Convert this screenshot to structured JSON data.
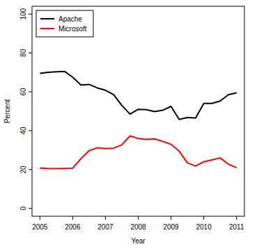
{
  "chart_data": {
    "type": "line",
    "x_label": "Year",
    "y_label": "Percent",
    "x": [
      2005,
      2005.25,
      2005.5,
      2005.75,
      2006,
      2006.25,
      2006.5,
      2006.75,
      2007,
      2007.25,
      2007.5,
      2007.75,
      2008,
      2008.25,
      2008.5,
      2008.75,
      2009,
      2009.25,
      2009.5,
      2009.75,
      2010,
      2010.25,
      2010.5,
      2010.75,
      2011
    ],
    "series": [
      {
        "name": "Apache",
        "color": "#000000",
        "values": [
          69.5,
          70,
          70.3,
          70.5,
          67.5,
          63.5,
          63.8,
          62,
          60.8,
          58.5,
          53,
          48.5,
          51,
          50.8,
          49.8,
          50.5,
          52.5,
          45.8,
          46.8,
          46.5,
          54,
          54,
          55.3,
          58.5,
          59.5
        ]
      },
      {
        "name": "Microsoft",
        "color": "#ff0000",
        "values": [
          20.8,
          20.5,
          20.5,
          20.6,
          20.7,
          25.5,
          29.7,
          31.2,
          30.8,
          31,
          32.7,
          37.3,
          36,
          35.5,
          35.8,
          34.5,
          33,
          29.5,
          23.5,
          21.8,
          24,
          25,
          26,
          22.8,
          21
        ]
      }
    ],
    "xlim": [
      2004.76,
      2011.24
    ],
    "xticks": [
      2005,
      2006,
      2007,
      2008,
      2009,
      2010,
      2011
    ],
    "ylim": [
      -4,
      104
    ],
    "yticks": [
      0,
      20,
      40,
      60,
      80,
      100
    ],
    "grid": false,
    "legend": "top-left"
  }
}
